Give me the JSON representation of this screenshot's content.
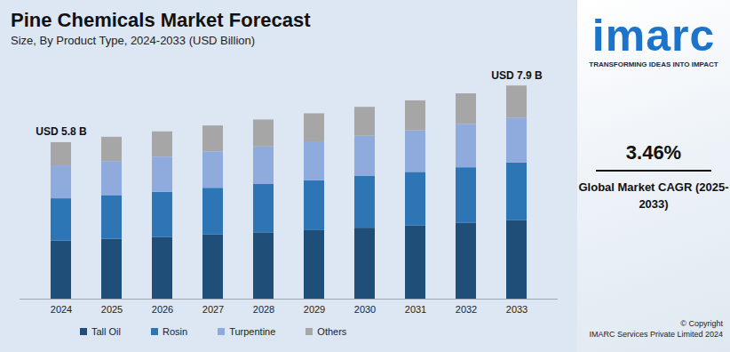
{
  "chart_data": {
    "type": "bar",
    "stacked": true,
    "title": "Pine Chemicals Market Forecast",
    "subtitle": "Size, By Product Type, 2024-2033 (USD Billion)",
    "categories": [
      "2024",
      "2025",
      "2026",
      "2027",
      "2028",
      "2029",
      "2030",
      "2031",
      "2032",
      "2033"
    ],
    "series": [
      {
        "name": "Tall Oil",
        "color": "#1f4e79",
        "values": [
          2.15,
          2.22,
          2.29,
          2.38,
          2.46,
          2.54,
          2.63,
          2.72,
          2.82,
          2.92
        ]
      },
      {
        "name": "Rosin",
        "color": "#2e75b6",
        "values": [
          1.57,
          1.62,
          1.67,
          1.73,
          1.79,
          1.85,
          1.92,
          1.98,
          2.05,
          2.13
        ]
      },
      {
        "name": "Turpentine",
        "color": "#8faadc",
        "values": [
          1.22,
          1.26,
          1.3,
          1.35,
          1.39,
          1.44,
          1.49,
          1.54,
          1.6,
          1.66
        ]
      },
      {
        "name": "Others",
        "color": "#a6a6a6",
        "values": [
          0.86,
          0.9,
          0.94,
          0.96,
          1.0,
          1.04,
          1.07,
          1.11,
          1.14,
          1.19
        ]
      }
    ],
    "annotations": [
      {
        "category": "2024",
        "text": "USD 5.8 B"
      },
      {
        "category": "2033",
        "text": "USD 7.9 B"
      }
    ],
    "ylim": [
      0,
      8.5
    ],
    "tick_labels": "x",
    "legend": "bottom"
  },
  "side_panel": {
    "logo": "imarc",
    "tagline": "TRANSFORMING IDEAS INTO IMPACT",
    "cagr": "3.46%",
    "cagr_label": "Global Market CAGR (2025-2033)",
    "copyright": [
      "© Copyright",
      "IMARC Services Private Limited 2024"
    ]
  }
}
